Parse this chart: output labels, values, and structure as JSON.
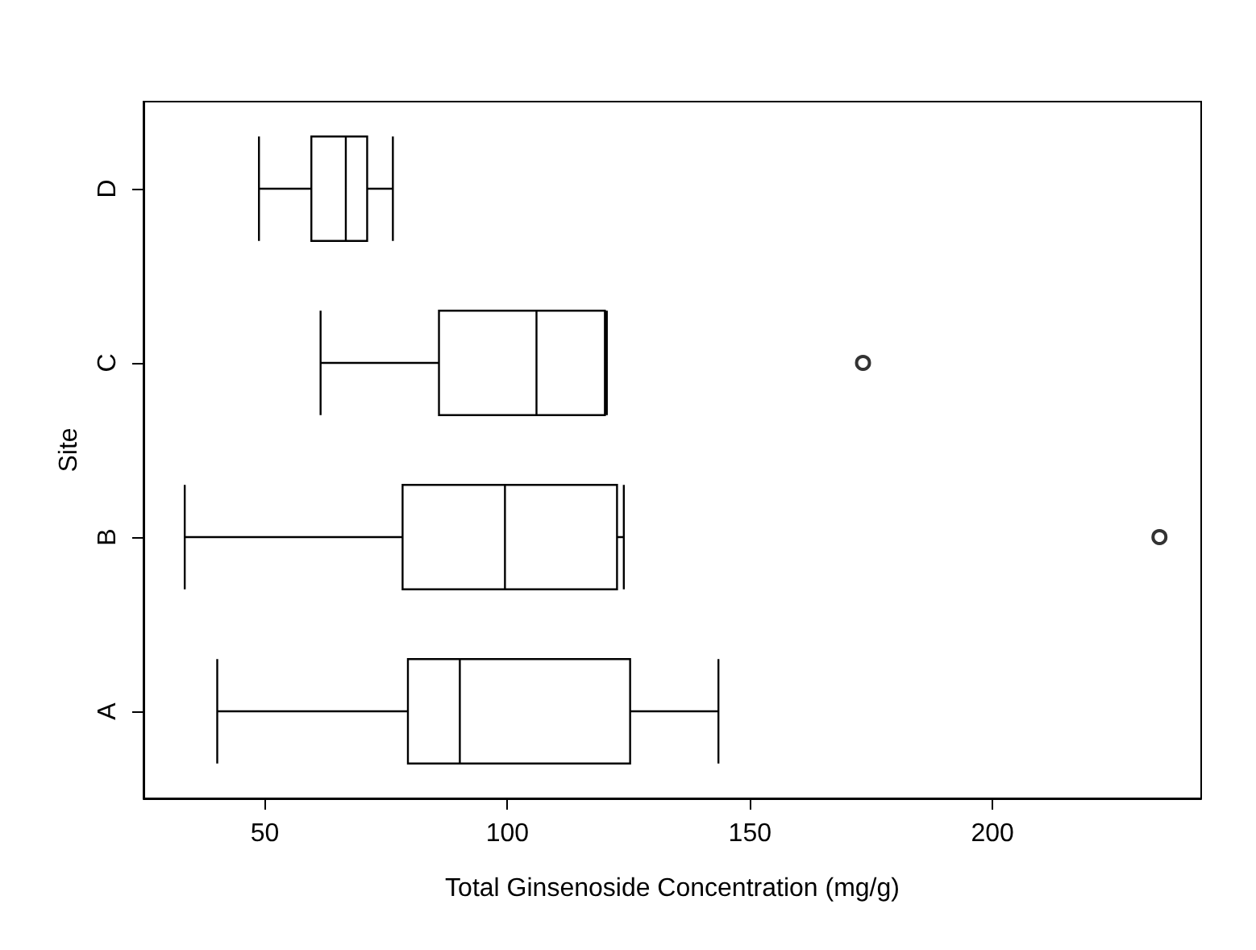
{
  "chart_data": {
    "type": "box",
    "orientation": "horizontal",
    "xlabel": "Total Ginsenoside Concentration (mg/g)",
    "ylabel": "Site",
    "categories": [
      "D",
      "C",
      "B",
      "A"
    ],
    "boxes": [
      {
        "low": 48.8,
        "q1": 59.6,
        "median": 66.7,
        "q3": 71.1,
        "high": 76.4
      },
      {
        "low": 61.5,
        "q1": 85.9,
        "median": 106,
        "q3": 120.1,
        "high": 120.5,
        "outliers": [
          173.3
        ]
      },
      {
        "low": 33.5,
        "q1": 78.4,
        "median": 99.5,
        "q3": 122.6,
        "high": 124,
        "outliers": [
          234.4
        ]
      },
      {
        "low": 40.2,
        "q1": 79.5,
        "median": 90.2,
        "q3": 125.3,
        "high": 143.5
      }
    ],
    "xlim": [
      25,
      243
    ],
    "xticks": [
      50,
      100,
      150,
      200
    ],
    "grid": false
  }
}
